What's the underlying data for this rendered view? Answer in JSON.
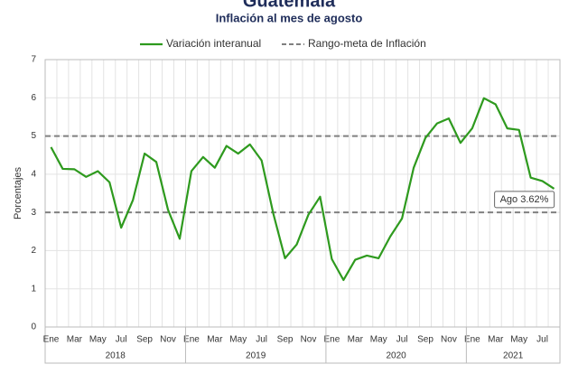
{
  "chart_data": {
    "type": "line",
    "title": "Guatemala",
    "subtitle": "Inflación al mes de agosto",
    "y_label": "Porcentajes",
    "categories": [
      "Ene",
      null,
      "Mar",
      null,
      "May",
      null,
      "Jul",
      null,
      "Sep",
      null,
      "Nov",
      null,
      "Ene",
      null,
      "Mar",
      null,
      "May",
      null,
      "Jul",
      null,
      "Sep",
      null,
      "Nov",
      null,
      "Ene",
      null,
      "Mar",
      null,
      "May",
      null,
      "Jul",
      null,
      "Sep",
      null,
      "Nov",
      null,
      "Ene",
      null,
      "Mar",
      null,
      "May",
      null,
      "Jul",
      null
    ],
    "years": [
      "2018",
      "2019",
      "2020",
      "2021"
    ],
    "series": [
      {
        "name": "Variación interanual",
        "color": "#2e9a1e",
        "values": [
          4.71,
          4.14,
          4.13,
          3.93,
          4.08,
          3.79,
          2.6,
          3.32,
          4.54,
          4.32,
          3.07,
          2.31,
          4.08,
          4.45,
          4.17,
          4.74,
          4.54,
          4.78,
          4.36,
          2.97,
          1.8,
          2.16,
          2.94,
          3.41,
          1.78,
          1.23,
          1.76,
          1.87,
          1.8,
          2.37,
          2.84,
          4.17,
          4.95,
          5.33,
          5.46,
          4.82,
          5.2,
          5.99,
          5.83,
          5.2,
          5.16,
          3.91,
          3.82,
          3.62
        ]
      }
    ],
    "reference_lines": {
      "name": "Rango-meta de Inflación",
      "color": "#808080",
      "values": [
        3,
        5
      ]
    },
    "annotation": "Ago 3.62%",
    "ylim": [
      0,
      7
    ],
    "yticks": [
      0,
      1,
      2,
      3,
      4,
      5,
      6,
      7
    ],
    "grid": true
  }
}
